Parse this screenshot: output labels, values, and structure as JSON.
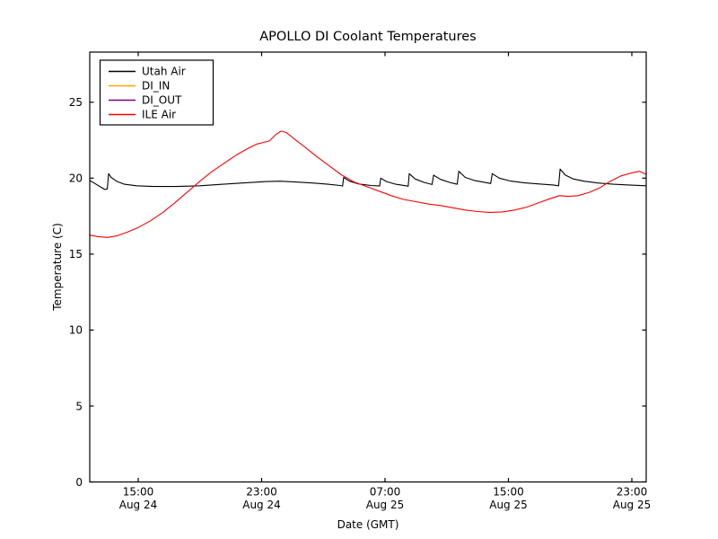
{
  "figure": {
    "background": "#ffffff",
    "frame_color": "#000000"
  },
  "chart_data": {
    "type": "line",
    "title": "APOLLO DI Coolant Temperatures",
    "xlabel": "Date (GMT)",
    "ylabel": "Temperature (C)",
    "x_axis_unit": "hours since Aug 24 00:00 GMT",
    "xlim": [
      11.86,
      47.93
    ],
    "ylim": [
      0,
      28.3
    ],
    "grid": false,
    "legend": {
      "position": "upper left",
      "entries": [
        "Utah Air",
        "DI_IN",
        "DI_OUT",
        "ILE Air"
      ]
    },
    "yticks": [
      {
        "value": 0,
        "label": "0"
      },
      {
        "value": 5,
        "label": "5"
      },
      {
        "value": 10,
        "label": "10"
      },
      {
        "value": 15,
        "label": "15"
      },
      {
        "value": 20,
        "label": "20"
      },
      {
        "value": 25,
        "label": "25"
      }
    ],
    "xticks": [
      {
        "hour": 15,
        "time": "15:00",
        "date": "Aug 24"
      },
      {
        "hour": 23,
        "time": "23:00",
        "date": "Aug 24"
      },
      {
        "hour": 31,
        "time": "07:00",
        "date": "Aug 25"
      },
      {
        "hour": 39,
        "time": "15:00",
        "date": "Aug 25"
      },
      {
        "hour": 47,
        "time": "23:00",
        "date": "Aug 25"
      }
    ],
    "series": [
      {
        "name": "Utah Air",
        "slug": "utah-air",
        "color": "#000000",
        "points": [
          [
            11.86,
            19.85
          ],
          [
            12.2,
            19.65
          ],
          [
            12.6,
            19.4
          ],
          [
            12.85,
            19.25
          ],
          [
            13.0,
            19.3
          ],
          [
            13.08,
            20.3
          ],
          [
            13.25,
            20.05
          ],
          [
            13.6,
            19.8
          ],
          [
            14.1,
            19.6
          ],
          [
            14.9,
            19.5
          ],
          [
            16.0,
            19.45
          ],
          [
            17.5,
            19.45
          ],
          [
            19.0,
            19.5
          ],
          [
            20.5,
            19.6
          ],
          [
            22.0,
            19.7
          ],
          [
            23.3,
            19.78
          ],
          [
            24.2,
            19.8
          ],
          [
            25.2,
            19.75
          ],
          [
            26.3,
            19.68
          ],
          [
            27.3,
            19.6
          ],
          [
            28.1,
            19.52
          ],
          [
            28.25,
            19.48
          ],
          [
            28.32,
            20.05
          ],
          [
            28.7,
            19.8
          ],
          [
            29.3,
            19.62
          ],
          [
            30.1,
            19.52
          ],
          [
            30.65,
            19.48
          ],
          [
            30.72,
            20.0
          ],
          [
            31.1,
            19.78
          ],
          [
            31.7,
            19.6
          ],
          [
            32.35,
            19.5
          ],
          [
            32.5,
            19.47
          ],
          [
            32.57,
            20.3
          ],
          [
            32.95,
            19.95
          ],
          [
            33.55,
            19.72
          ],
          [
            34.05,
            19.58
          ],
          [
            34.15,
            20.2
          ],
          [
            34.6,
            19.92
          ],
          [
            35.2,
            19.72
          ],
          [
            35.68,
            19.6
          ],
          [
            35.78,
            20.45
          ],
          [
            36.2,
            20.05
          ],
          [
            36.8,
            19.85
          ],
          [
            37.6,
            19.7
          ],
          [
            37.85,
            19.65
          ],
          [
            37.95,
            20.3
          ],
          [
            38.4,
            20.0
          ],
          [
            39.1,
            19.82
          ],
          [
            40.0,
            19.7
          ],
          [
            41.0,
            19.62
          ],
          [
            41.9,
            19.55
          ],
          [
            42.25,
            19.5
          ],
          [
            42.35,
            20.6
          ],
          [
            42.7,
            20.2
          ],
          [
            43.2,
            19.95
          ],
          [
            43.9,
            19.8
          ],
          [
            44.8,
            19.68
          ],
          [
            45.8,
            19.6
          ],
          [
            46.8,
            19.55
          ],
          [
            47.93,
            19.5
          ]
        ]
      },
      {
        "name": "DI_IN",
        "slug": "di-in",
        "color": "#ffa500",
        "points": []
      },
      {
        "name": "DI_OUT",
        "slug": "di-out",
        "color": "#800080",
        "points": []
      },
      {
        "name": "ILE Air",
        "slug": "ile-air",
        "color": "#ff0000",
        "points": [
          [
            11.86,
            16.25
          ],
          [
            12.4,
            16.15
          ],
          [
            13.0,
            16.1
          ],
          [
            13.6,
            16.2
          ],
          [
            14.3,
            16.45
          ],
          [
            15.0,
            16.75
          ],
          [
            15.8,
            17.2
          ],
          [
            16.6,
            17.75
          ],
          [
            17.4,
            18.4
          ],
          [
            18.2,
            19.1
          ],
          [
            19.0,
            19.8
          ],
          [
            19.8,
            20.45
          ],
          [
            20.6,
            21.0
          ],
          [
            21.4,
            21.55
          ],
          [
            22.1,
            21.95
          ],
          [
            22.7,
            22.25
          ],
          [
            23.1,
            22.35
          ],
          [
            23.5,
            22.45
          ],
          [
            23.9,
            22.85
          ],
          [
            24.25,
            23.1
          ],
          [
            24.6,
            23.0
          ],
          [
            25.1,
            22.6
          ],
          [
            25.8,
            22.05
          ],
          [
            26.6,
            21.4
          ],
          [
            27.4,
            20.8
          ],
          [
            28.2,
            20.2
          ],
          [
            29.0,
            19.75
          ],
          [
            29.8,
            19.45
          ],
          [
            30.6,
            19.15
          ],
          [
            31.4,
            18.85
          ],
          [
            32.2,
            18.6
          ],
          [
            33.0,
            18.45
          ],
          [
            33.8,
            18.3
          ],
          [
            34.6,
            18.2
          ],
          [
            35.4,
            18.05
          ],
          [
            36.2,
            17.9
          ],
          [
            37.0,
            17.8
          ],
          [
            37.8,
            17.75
          ],
          [
            38.6,
            17.78
          ],
          [
            39.4,
            17.9
          ],
          [
            40.2,
            18.1
          ],
          [
            41.0,
            18.4
          ],
          [
            41.7,
            18.65
          ],
          [
            42.3,
            18.85
          ],
          [
            42.9,
            18.8
          ],
          [
            43.5,
            18.85
          ],
          [
            44.2,
            19.05
          ],
          [
            44.9,
            19.35
          ],
          [
            45.6,
            19.8
          ],
          [
            46.3,
            20.15
          ],
          [
            47.0,
            20.35
          ],
          [
            47.5,
            20.45
          ],
          [
            47.93,
            20.25
          ]
        ]
      }
    ]
  }
}
